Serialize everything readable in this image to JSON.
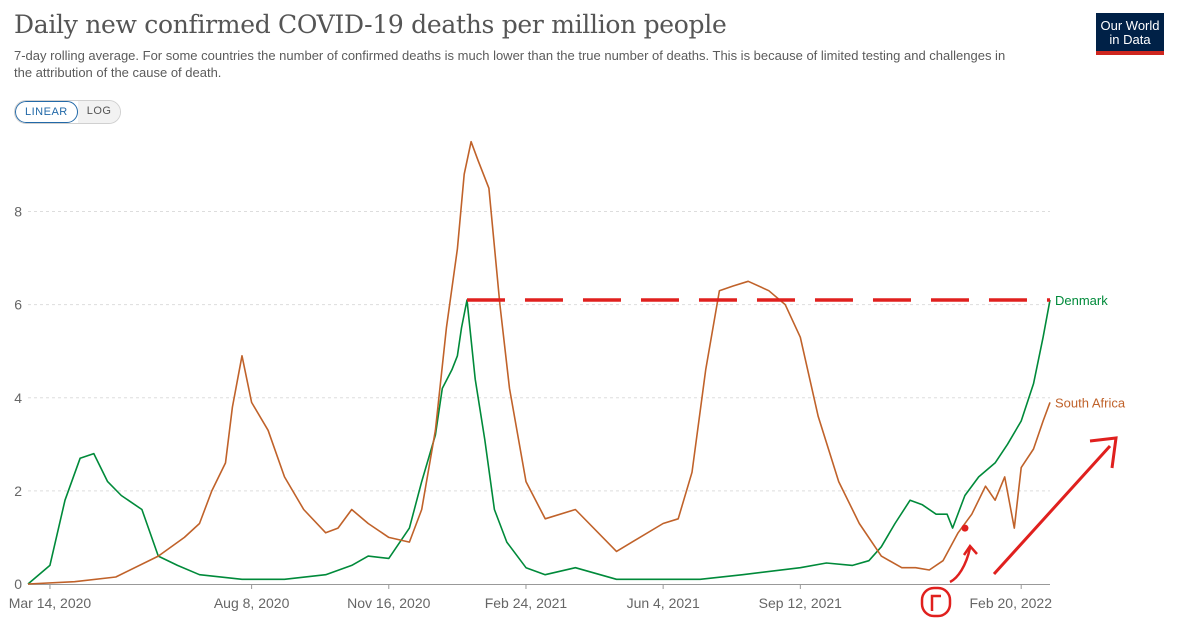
{
  "header": {
    "title": "Daily new confirmed COVID-19 deaths per million people",
    "subtitle": "7-day rolling average. For some countries the number of confirmed deaths is much lower than the true number of deaths. This is because of limited testing and challenges in the attribution of the cause of death.",
    "logo_line1": "Our World",
    "logo_line2": "in Data"
  },
  "controls": {
    "linear_label": "LINEAR",
    "log_label": "LOG",
    "active": "linear"
  },
  "colors": {
    "denmark": "#008a3a",
    "south_africa": "#c0622a",
    "annotation": "#e0201e",
    "grid": "#dddddd",
    "logo_bg": "#002147",
    "logo_accent": "#ce261e"
  },
  "chart_data": {
    "type": "line",
    "title": "Daily new confirmed COVID-19 deaths per million people",
    "xlabel": "",
    "ylabel": "",
    "ylim": [
      0,
      9.6
    ],
    "yticks": [
      0,
      2,
      4,
      6,
      8
    ],
    "xticks": [
      "Mar 14, 2020",
      "Aug 8, 2020",
      "Nov 16, 2020",
      "Feb 24, 2021",
      "Jun 4, 2021",
      "Sep 12, 2021",
      "Feb 20, 2022"
    ],
    "xlim": [
      "2020-02-27",
      "2022-03-13"
    ],
    "grid": "horizontal dashed",
    "series": [
      {
        "name": "Denmark",
        "x": [
          "2020-02-27",
          "2020-03-14",
          "2020-03-25",
          "2020-04-05",
          "2020-04-15",
          "2020-04-25",
          "2020-05-05",
          "2020-05-20",
          "2020-06-01",
          "2020-06-15",
          "2020-07-01",
          "2020-08-01",
          "2020-09-01",
          "2020-10-01",
          "2020-10-20",
          "2020-11-01",
          "2020-11-16",
          "2020-12-01",
          "2020-12-10",
          "2020-12-20",
          "2020-12-25",
          "2021-01-01",
          "2021-01-05",
          "2021-01-08",
          "2021-01-12",
          "2021-01-18",
          "2021-01-25",
          "2021-02-01",
          "2021-02-10",
          "2021-02-24",
          "2021-03-10",
          "2021-04-01",
          "2021-05-01",
          "2021-06-04",
          "2021-07-01",
          "2021-08-01",
          "2021-09-12",
          "2021-10-01",
          "2021-10-20",
          "2021-11-01",
          "2021-11-10",
          "2021-11-20",
          "2021-12-01",
          "2021-12-10",
          "2021-12-20",
          "2021-12-28",
          "2022-01-01",
          "2022-01-10",
          "2022-01-20",
          "2022-02-01",
          "2022-02-10",
          "2022-02-20",
          "2022-03-01",
          "2022-03-08",
          "2022-03-13"
        ],
        "y": [
          0.0,
          0.4,
          1.8,
          2.7,
          2.8,
          2.2,
          1.9,
          1.6,
          0.6,
          0.4,
          0.2,
          0.1,
          0.1,
          0.2,
          0.4,
          0.6,
          0.55,
          1.2,
          2.2,
          3.2,
          4.2,
          4.6,
          4.9,
          5.5,
          6.1,
          4.4,
          3.1,
          1.6,
          0.9,
          0.35,
          0.2,
          0.35,
          0.1,
          0.1,
          0.1,
          0.2,
          0.35,
          0.45,
          0.4,
          0.5,
          0.8,
          1.3,
          1.8,
          1.7,
          1.5,
          1.5,
          1.2,
          1.9,
          2.3,
          2.6,
          3.0,
          3.5,
          4.3,
          5.3,
          6.1
        ]
      },
      {
        "name": "South Africa",
        "x": [
          "2020-02-27",
          "2020-04-01",
          "2020-05-01",
          "2020-06-01",
          "2020-06-20",
          "2020-07-01",
          "2020-07-10",
          "2020-07-20",
          "2020-07-25",
          "2020-08-01",
          "2020-08-08",
          "2020-08-20",
          "2020-09-01",
          "2020-09-15",
          "2020-10-01",
          "2020-10-10",
          "2020-10-20",
          "2020-11-01",
          "2020-11-16",
          "2020-12-01",
          "2020-12-10",
          "2020-12-20",
          "2020-12-28",
          "2021-01-05",
          "2021-01-10",
          "2021-01-15",
          "2021-01-20",
          "2021-01-28",
          "2021-02-05",
          "2021-02-12",
          "2021-02-24",
          "2021-03-10",
          "2021-04-01",
          "2021-05-01",
          "2021-06-04",
          "2021-06-15",
          "2021-06-25",
          "2021-07-05",
          "2021-07-15",
          "2021-07-25",
          "2021-08-05",
          "2021-08-20",
          "2021-09-01",
          "2021-09-12",
          "2021-09-25",
          "2021-10-10",
          "2021-10-25",
          "2021-11-10",
          "2021-11-25",
          "2021-12-05",
          "2021-12-15",
          "2021-12-25",
          "2022-01-05",
          "2022-01-15",
          "2022-01-25",
          "2022-02-01",
          "2022-02-08",
          "2022-02-15",
          "2022-02-20",
          "2022-03-01",
          "2022-03-08",
          "2022-03-13"
        ],
        "y": [
          0.0,
          0.05,
          0.15,
          0.6,
          1.0,
          1.3,
          2.0,
          2.6,
          3.8,
          4.9,
          3.9,
          3.3,
          2.3,
          1.6,
          1.1,
          1.2,
          1.6,
          1.3,
          1.0,
          0.9,
          1.6,
          3.3,
          5.5,
          7.2,
          8.8,
          9.5,
          9.1,
          8.5,
          6.0,
          4.2,
          2.2,
          1.4,
          1.6,
          0.7,
          1.3,
          1.4,
          2.4,
          4.6,
          6.3,
          6.4,
          6.5,
          6.3,
          6.0,
          5.3,
          3.6,
          2.2,
          1.3,
          0.6,
          0.35,
          0.35,
          0.3,
          0.5,
          1.1,
          1.5,
          2.1,
          1.8,
          2.3,
          1.2,
          2.5,
          2.9,
          3.5,
          3.9
        ]
      }
    ],
    "series_labels": [
      "Denmark",
      "South Africa"
    ],
    "annotations": {
      "dashed_line_y": 6.1,
      "dashed_line_from": "2021-01-12",
      "dashed_line_to": "2022-03-13",
      "dot": {
        "x": "2022-01-10",
        "y": 1.2
      }
    }
  }
}
